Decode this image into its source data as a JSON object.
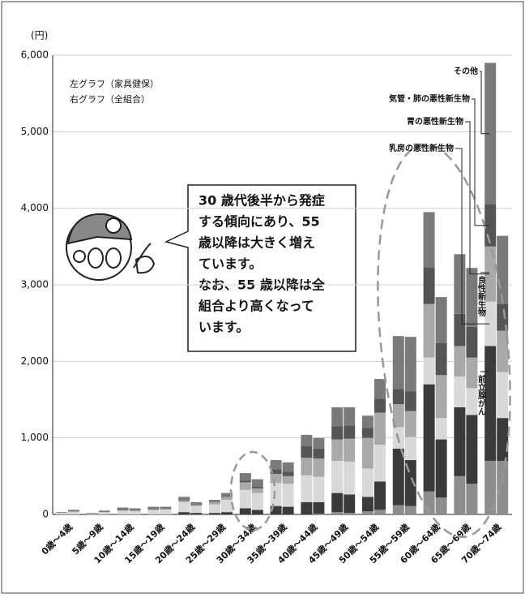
{
  "chart_data": {
    "type": "bar",
    "stacked": true,
    "y_unit": "(円)",
    "group_labels": [
      "左グラフ（家具健保）",
      "右グラフ（全組合）"
    ],
    "categories": [
      "0歳～4歳",
      "5歳～9歳",
      "10歳～14歳",
      "15歳～19歳",
      "20歳～24歳",
      "25歳～29歳",
      "30歳～34歳",
      "35歳～39歳",
      "40歳～44歳",
      "45歳～49歳",
      "50歳～54歳",
      "55歳～59歳",
      "60歳～64歳",
      "65歳～69歳",
      "70歳～74歳"
    ],
    "series": [
      {
        "name": "前立腺がん",
        "color": "#8e8e8e",
        "values": [
          [
            0,
            0
          ],
          [
            0,
            0
          ],
          [
            0,
            0
          ],
          [
            0,
            0
          ],
          [
            0,
            0
          ],
          [
            0,
            0
          ],
          [
            0,
            0
          ],
          [
            0,
            0
          ],
          [
            0,
            10
          ],
          [
            30,
            20
          ],
          [
            40,
            60
          ],
          [
            120,
            110
          ],
          [
            300,
            220
          ],
          [
            500,
            400
          ],
          [
            700,
            700
          ]
        ]
      },
      {
        "name": "良性新生物",
        "color": "#3a3a3a",
        "values": [
          [
            0,
            0
          ],
          [
            0,
            0
          ],
          [
            0,
            0
          ],
          [
            0,
            0
          ],
          [
            30,
            20
          ],
          [
            20,
            30
          ],
          [
            80,
            60
          ],
          [
            110,
            100
          ],
          [
            160,
            150
          ],
          [
            250,
            240
          ],
          [
            190,
            370
          ],
          [
            740,
            600
          ],
          [
            1400,
            760
          ],
          [
            900,
            900
          ],
          [
            1500,
            560
          ]
        ]
      },
      {
        "name": "乳房の悪性新生物",
        "color": "#d9d9d9",
        "values": [
          [
            20,
            30
          ],
          [
            10,
            30
          ],
          [
            50,
            40
          ],
          [
            60,
            60
          ],
          [
            130,
            90
          ],
          [
            110,
            160
          ],
          [
            240,
            220
          ],
          [
            300,
            300
          ],
          [
            350,
            330
          ],
          [
            420,
            430
          ],
          [
            370,
            480
          ],
          [
            280,
            300
          ],
          [
            350,
            280
          ],
          [
            400,
            350
          ],
          [
            580,
            600
          ]
        ]
      },
      {
        "name": "胃の悪性新生物",
        "color": "#a9a9a9",
        "values": [
          [
            0,
            10
          ],
          [
            0,
            0
          ],
          [
            0,
            10
          ],
          [
            0,
            10
          ],
          [
            20,
            10
          ],
          [
            30,
            40
          ],
          [
            100,
            60
          ],
          [
            120,
            100
          ],
          [
            230,
            240
          ],
          [
            280,
            300
          ],
          [
            400,
            420
          ],
          [
            300,
            340
          ],
          [
            700,
            560
          ],
          [
            400,
            400
          ],
          [
            720,
            540
          ]
        ]
      },
      {
        "name": "気管・肺の悪性新生物",
        "color": "#555555",
        "values": [
          [
            0,
            0
          ],
          [
            0,
            0
          ],
          [
            0,
            0
          ],
          [
            0,
            0
          ],
          [
            0,
            0
          ],
          [
            0,
            10
          ],
          [
            20,
            20
          ],
          [
            60,
            60
          ],
          [
            150,
            130
          ],
          [
            170,
            170
          ],
          [
            130,
            180
          ],
          [
            200,
            260
          ],
          [
            480,
            420
          ],
          [
            420,
            400
          ],
          [
            550,
            350
          ]
        ]
      },
      {
        "name": "その他",
        "color": "#7a7a7a",
        "values": [
          [
            10,
            20
          ],
          [
            10,
            20
          ],
          [
            40,
            30
          ],
          [
            40,
            30
          ],
          [
            50,
            40
          ],
          [
            30,
            40
          ],
          [
            100,
            100
          ],
          [
            120,
            120
          ],
          [
            150,
            140
          ],
          [
            250,
            240
          ],
          [
            160,
            260
          ],
          [
            690,
            710
          ],
          [
            720,
            600
          ],
          [
            780,
            770
          ],
          [
            1850,
            890
          ]
        ]
      }
    ],
    "ylim": [
      0,
      6000
    ],
    "yticks": [
      0,
      {
        "value": 1000,
        "label": "1,000"
      },
      {
        "value": 2000,
        "label": "2,000"
      },
      {
        "value": 3000,
        "label": "3,000"
      },
      {
        "value": 4000,
        "label": "4,000"
      },
      {
        "value": 5000,
        "label": "5,000"
      },
      {
        "value": 6000,
        "label": "6,000"
      }
    ],
    "grid": true,
    "callout": [
      "30 歳代後半から発症",
      "する傾向にあり、55",
      "歳以降は大きく増え",
      "ています。",
      "なお、55 歳以降は全",
      "組合より高くなって",
      "います。"
    ]
  }
}
